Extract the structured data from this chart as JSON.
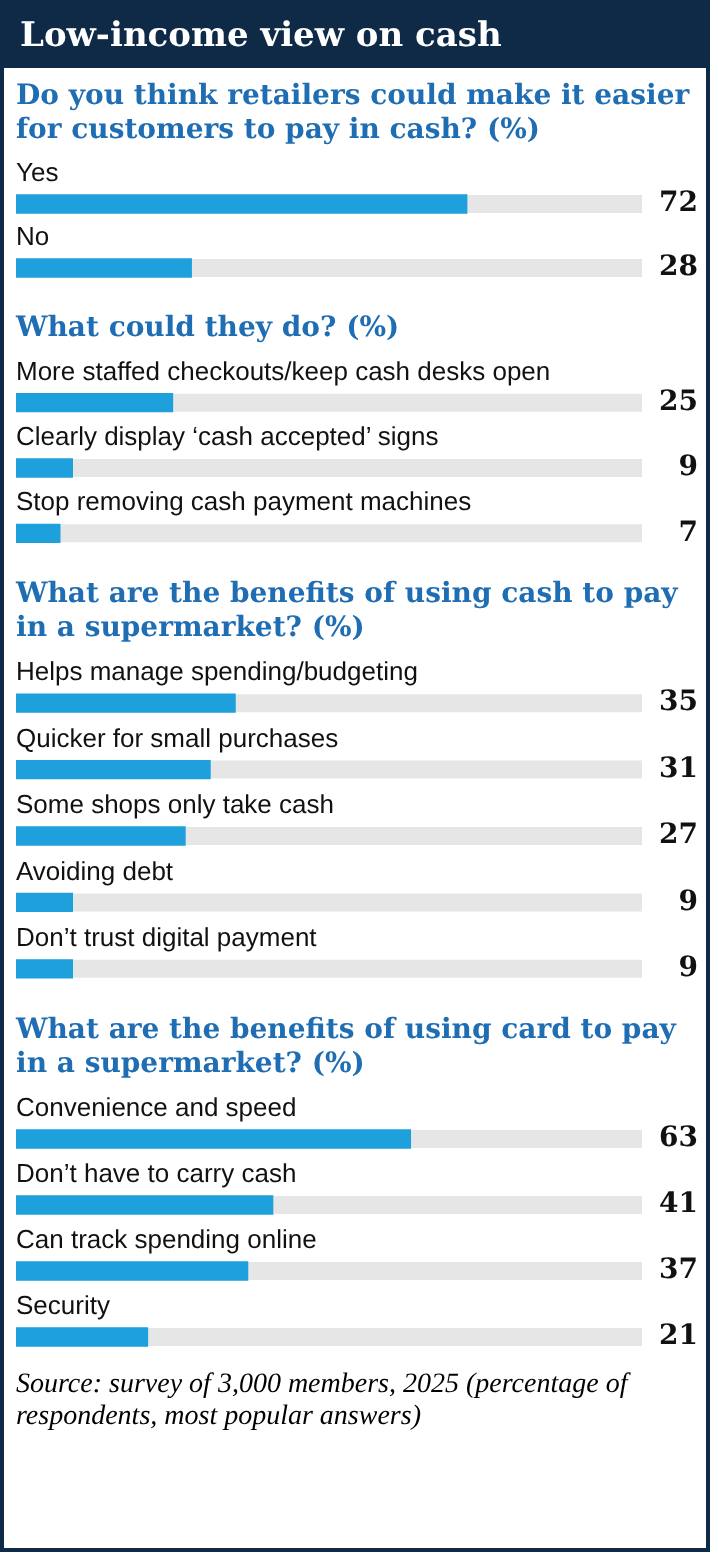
{
  "chart_data": [
    {
      "type": "bar",
      "orientation": "horizontal",
      "title": "Low-income view on cash",
      "subtitle": "Do you think retailers could make it easier for customers to pay in cash? (%)",
      "categories": [
        "Yes",
        "No"
      ],
      "values": [
        72,
        28
      ],
      "color": "#1ea0dc",
      "xlim": [
        0,
        100
      ],
      "tick_labels": "y",
      "data_labels": true,
      "legend": false
    },
    {
      "type": "bar",
      "orientation": "horizontal",
      "title": "What could they do? (%)",
      "categories": [
        "More staffed checkouts/keep cash desks open",
        "Clearly display ‘cash accepted’ signs",
        "Stop removing cash payment machines"
      ],
      "values": [
        25,
        9,
        7
      ],
      "color": "#1ea0dc",
      "xlim": [
        0,
        100
      ],
      "tick_labels": "y",
      "data_labels": true,
      "legend": false
    },
    {
      "type": "bar",
      "orientation": "horizontal",
      "title": "What are the benefits of using cash to pay in a supermarket? (%)",
      "categories": [
        "Helps manage spending/budgeting",
        "Quicker for small purchases",
        "Some shops only take cash",
        "Avoiding debt",
        "Don’t trust digital payment"
      ],
      "values": [
        35,
        31,
        27,
        9,
        9
      ],
      "color": "#1ea0dc",
      "xlim": [
        0,
        100
      ],
      "tick_labels": "y",
      "data_labels": true,
      "legend": false
    },
    {
      "type": "bar",
      "orientation": "horizontal",
      "title": "What are the benefits of using card to pay in a supermarket? (%)",
      "categories": [
        "Convenience and speed",
        "Don’t have to carry cash",
        "Can track spending online",
        "Security"
      ],
      "values": [
        63,
        41,
        37,
        21
      ],
      "color": "#1ea0dc",
      "xlim": [
        0,
        100
      ],
      "tick_labels": "y",
      "data_labels": true,
      "legend": false,
      "annotations": [
        "Source: survey of 3,000 members, 2025 (percentage of respondents, most popular answers)"
      ]
    }
  ]
}
